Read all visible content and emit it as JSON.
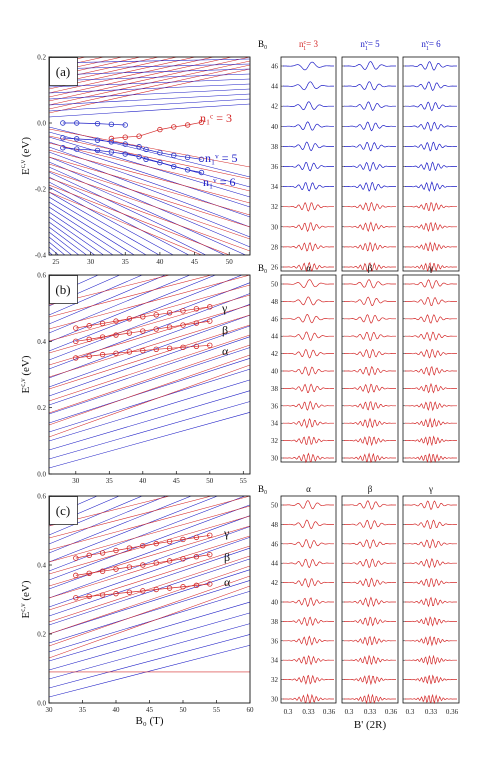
{
  "colors": {
    "red": "#d42a2a",
    "blue": "#1c1cc6",
    "marker": "#d42a2a",
    "marker_blue": "#2a36c8"
  },
  "chart_data": [
    {
      "type": "line",
      "panel_label": "(a)",
      "ylabel": "E^{c,v} (eV)",
      "xlim": [
        24,
        53
      ],
      "ylim": [
        -0.4,
        0.2
      ],
      "xticks": [
        "25",
        "30",
        "35",
        "40",
        "45",
        "50"
      ],
      "yticks": [
        "-0.4",
        "-0.2",
        "0.0",
        "0.2"
      ],
      "annotations": [
        {
          "text": "n₁ᶜ = 3",
          "color": "red"
        },
        {
          "text": "n₁ᵛ = 5",
          "color": "blue"
        },
        {
          "text": "n₁ᵛ = 6",
          "color": "blue"
        }
      ],
      "series": [
        {
          "color": "red",
          "x": [
            33,
            35,
            37,
            40,
            42,
            44,
            46
          ],
          "y": [
            -0.047,
            -0.043,
            -0.04,
            -0.02,
            -0.012,
            -0.006,
            0.002
          ]
        },
        {
          "color": "blue",
          "x": [
            26,
            28,
            31,
            33,
            35,
            37,
            38,
            40,
            42,
            44,
            46
          ],
          "y": [
            -0.045,
            -0.048,
            -0.052,
            -0.057,
            -0.064,
            -0.072,
            -0.08,
            -0.09,
            -0.098,
            -0.104,
            -0.11
          ]
        },
        {
          "color": "blue",
          "x": [
            26,
            28,
            31,
            33,
            35,
            37,
            38,
            40,
            42,
            44,
            46
          ],
          "y": [
            -0.075,
            -0.079,
            -0.083,
            -0.088,
            -0.094,
            -0.102,
            -0.11,
            -0.12,
            -0.132,
            -0.142,
            -0.15
          ]
        },
        {
          "color": "blue",
          "x": [
            26,
            28,
            31,
            33,
            35
          ],
          "y": [
            0.0,
            0.0,
            -0.002,
            -0.004,
            -0.006
          ]
        }
      ]
    },
    {
      "type": "line",
      "panel_label": "(b)",
      "ylabel": "E^{c,v} (eV)",
      "xlim": [
        26,
        56
      ],
      "ylim": [
        0,
        0.6
      ],
      "xticks": [
        "30",
        "35",
        "40",
        "45",
        "50",
        "55"
      ],
      "yticks": [
        "0.0",
        "0.2",
        "0.4",
        "0.6"
      ],
      "annotations": [
        {
          "text": "γ",
          "color": "black"
        },
        {
          "text": "β",
          "color": "black"
        },
        {
          "text": "α",
          "color": "black"
        }
      ],
      "series": [
        {
          "name": "γ",
          "color": "red",
          "x": [
            30,
            32,
            34,
            36,
            38,
            40,
            42,
            44,
            46,
            48,
            50
          ],
          "y": [
            0.44,
            0.447,
            0.454,
            0.461,
            0.468,
            0.474,
            0.48,
            0.486,
            0.492,
            0.498,
            0.504
          ]
        },
        {
          "name": "β",
          "color": "red",
          "x": [
            30,
            32,
            34,
            36,
            38,
            40,
            42,
            44,
            46,
            48,
            50
          ],
          "y": [
            0.4,
            0.406,
            0.413,
            0.419,
            0.425,
            0.431,
            0.437,
            0.443,
            0.449,
            0.455,
            0.461
          ]
        },
        {
          "name": "α",
          "color": "red",
          "x": [
            30,
            32,
            34,
            36,
            38,
            40,
            42,
            44,
            46,
            48,
            50
          ],
          "y": [
            0.35,
            0.355,
            0.36,
            0.364,
            0.368,
            0.372,
            0.376,
            0.379,
            0.382,
            0.385,
            0.388
          ]
        }
      ]
    },
    {
      "type": "line",
      "panel_label": "(c)",
      "ylabel": "E^{c,v} (eV)",
      "xlabel": "B₀ (T)",
      "xlim": [
        30,
        60
      ],
      "ylim": [
        0,
        0.6
      ],
      "xticks": [
        "30",
        "35",
        "40",
        "45",
        "50",
        "55",
        "60"
      ],
      "yticks": [
        "0.0",
        "0.2",
        "0.4",
        "0.6"
      ],
      "annotations": [
        {
          "text": "γ",
          "color": "black"
        },
        {
          "text": "β",
          "color": "black"
        },
        {
          "text": "α",
          "color": "black"
        }
      ],
      "series": [
        {
          "name": "γ",
          "color": "red",
          "x": [
            34,
            36,
            38,
            40,
            42,
            44,
            46,
            48,
            50,
            52,
            54
          ],
          "y": [
            0.42,
            0.428,
            0.435,
            0.442,
            0.449,
            0.456,
            0.462,
            0.468,
            0.474,
            0.48,
            0.486
          ]
        },
        {
          "name": "β",
          "color": "red",
          "x": [
            34,
            36,
            38,
            40,
            42,
            44,
            46,
            48,
            50,
            52,
            54
          ],
          "y": [
            0.37,
            0.376,
            0.382,
            0.388,
            0.394,
            0.4,
            0.406,
            0.412,
            0.418,
            0.424,
            0.43
          ]
        },
        {
          "name": "α",
          "color": "red",
          "x": [
            34,
            36,
            38,
            40,
            42,
            44,
            46,
            48,
            50,
            52,
            54
          ],
          "y": [
            0.305,
            0.309,
            0.313,
            0.317,
            0.321,
            0.325,
            0.329,
            0.333,
            0.337,
            0.341,
            0.345
          ]
        }
      ]
    }
  ],
  "wavefunctions": [
    {
      "axis_title": "B₀",
      "columns": [
        {
          "label_main": "n",
          "label_super": "c",
          "label_sub": "1",
          "label_tail": "= 3",
          "color": "red"
        },
        {
          "label_main": "n",
          "label_super": "v",
          "label_sub": "1",
          "label_tail": "= 5",
          "color": "blue"
        },
        {
          "label_main": "n",
          "label_super": "v",
          "label_sub": "1",
          "label_tail": "= 6",
          "color": "blue"
        }
      ],
      "rows": [
        "46",
        "44",
        "42",
        "40",
        "38",
        "36",
        "34",
        "32",
        "30",
        "28",
        "26"
      ],
      "row_colors": [
        "blue",
        "blue",
        "blue",
        "blue",
        "blue",
        "blue",
        "blue",
        "red",
        "red",
        "red",
        "red"
      ]
    },
    {
      "axis_title": "B₀",
      "columns": [
        {
          "label_main": "α",
          "color": "black"
        },
        {
          "label_main": "β",
          "color": "black"
        },
        {
          "label_main": "γ",
          "color": "black"
        }
      ],
      "rows": [
        "50",
        "48",
        "46",
        "44",
        "42",
        "40",
        "38",
        "36",
        "34",
        "32",
        "30"
      ],
      "row_colors": [
        "red",
        "red",
        "red",
        "red",
        "red",
        "red",
        "red",
        "red",
        "red",
        "red",
        "red"
      ]
    },
    {
      "axis_title": "B₀",
      "columns": [
        {
          "label_main": "α",
          "color": "black"
        },
        {
          "label_main": "β",
          "color": "black"
        },
        {
          "label_main": "γ",
          "color": "black"
        }
      ],
      "rows": [
        "50",
        "48",
        "46",
        "44",
        "42",
        "40",
        "38",
        "36",
        "34",
        "32",
        "30"
      ],
      "row_colors": [
        "red",
        "red",
        "red",
        "red",
        "red",
        "red",
        "red",
        "red",
        "red",
        "red",
        "red"
      ],
      "xticks": [
        "0.3",
        "0.33",
        "0.36"
      ],
      "xlabel": "B' (2R)"
    }
  ]
}
